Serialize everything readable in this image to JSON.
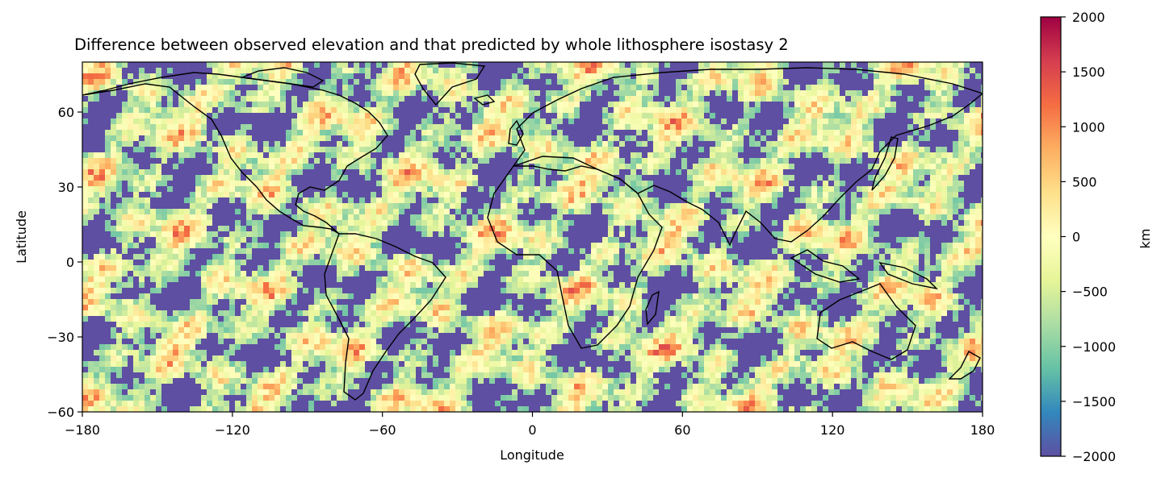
{
  "chart_data": {
    "type": "heatmap",
    "title": "Difference between observed elevation and that predicted by whole lithosphere isostasy 2",
    "xlabel": "Longitude",
    "ylabel": "Latitude",
    "xlim": [
      -180,
      180
    ],
    "ylim": [
      -60,
      80
    ],
    "xticks": [
      -180,
      -120,
      -60,
      0,
      60,
      120,
      180
    ],
    "xtick_labels": [
      "−180",
      "−120",
      "−60",
      "0",
      "60",
      "120",
      "180"
    ],
    "yticks": [
      -60,
      -30,
      0,
      30,
      60
    ],
    "ytick_labels": [
      "−60",
      "−30",
      "0",
      "30",
      "60"
    ],
    "colorbar": {
      "label": "km",
      "range": [
        -2000,
        2000
      ],
      "colormap": "Spectral_r",
      "ticks": [
        -2000,
        -1500,
        -1000,
        -500,
        0,
        500,
        1000,
        1500,
        2000
      ],
      "tick_labels": [
        "−2000",
        "−1500",
        "−1000",
        "−500",
        "0",
        "500",
        "1000",
        "1500",
        "2000"
      ],
      "colors": [
        "#5e4fa2",
        "#3288bd",
        "#66c2a5",
        "#abdda4",
        "#e6f598",
        "#ffffbf",
        "#fee08b",
        "#fdae61",
        "#f46d43",
        "#d53e4f",
        "#9e0142"
      ]
    },
    "grid": false,
    "overlay": "coastlines"
  }
}
